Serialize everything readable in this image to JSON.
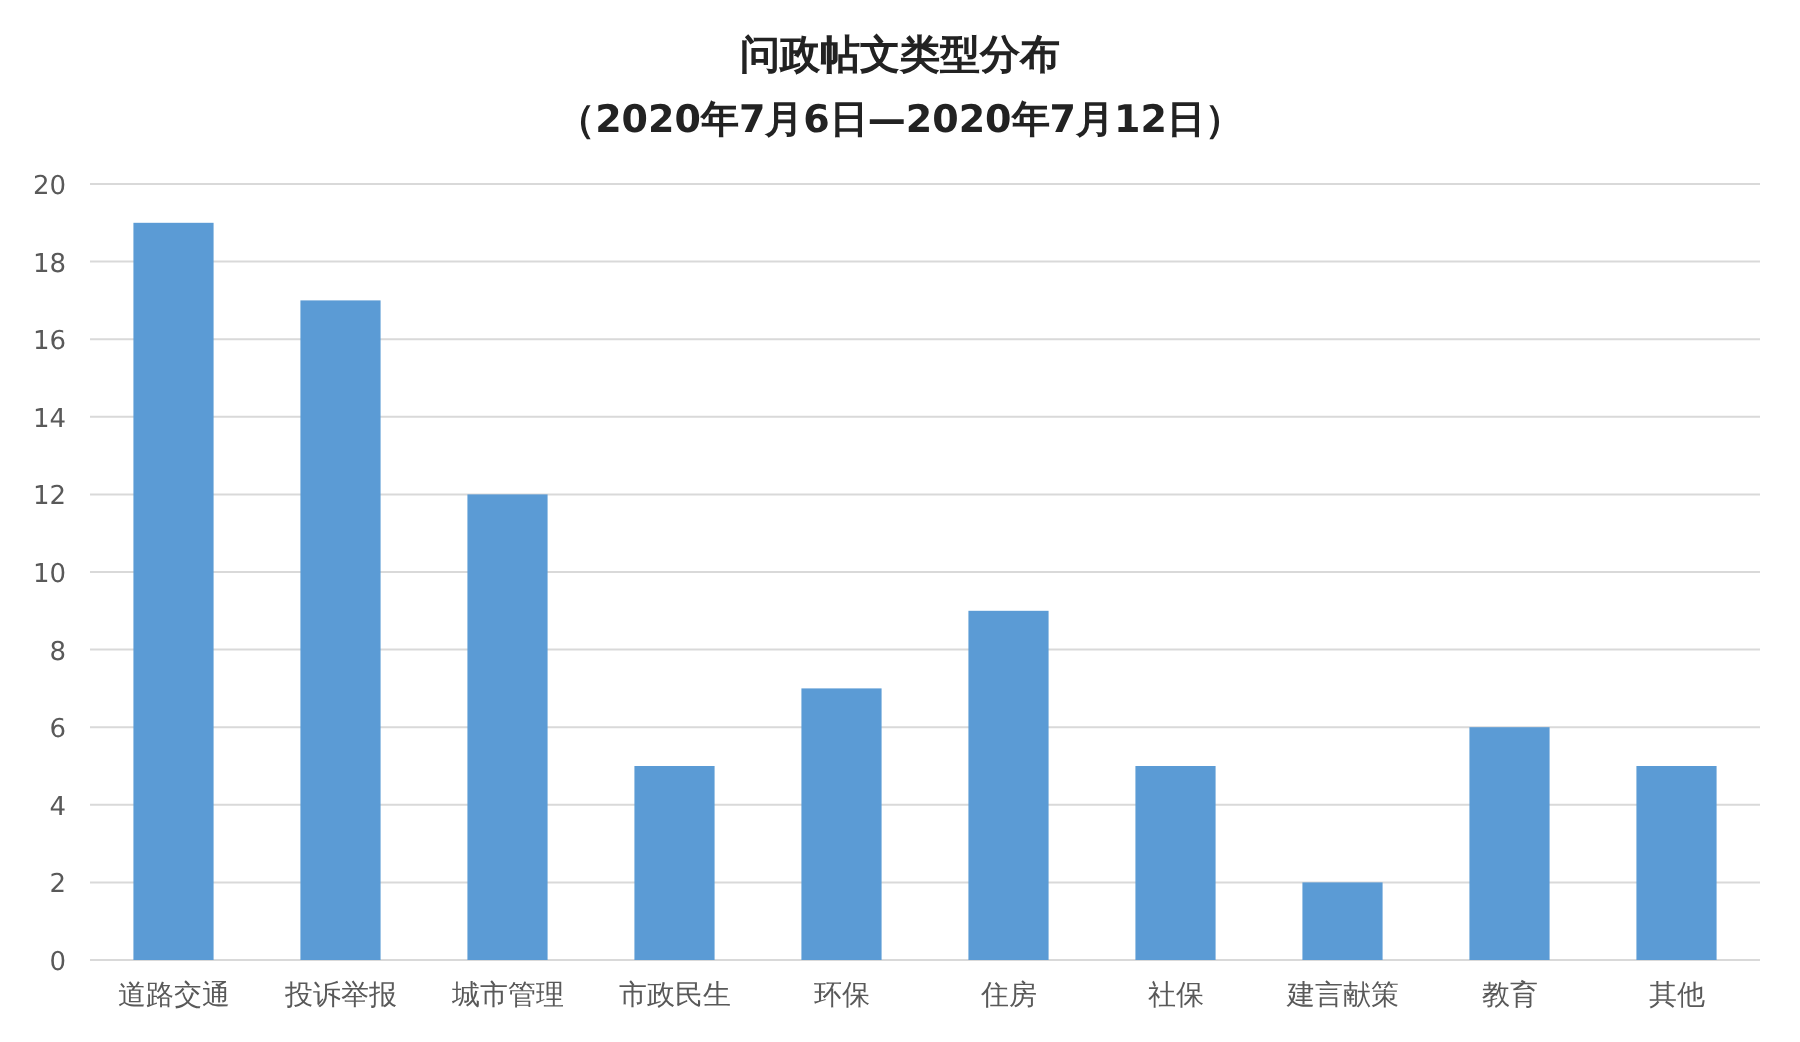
{
  "chart_data": {
    "type": "bar",
    "title": "问政帖文类型分布",
    "subtitle": "（2020年7月6日—2020年7月12日）",
    "categories": [
      "道路交通",
      "投诉举报",
      "城市管理",
      "市政民生",
      "环保",
      "住房",
      "社保",
      "建言献策",
      "教育",
      "其他"
    ],
    "values": [
      19,
      17,
      12,
      5,
      7,
      9,
      5,
      2,
      6,
      5
    ],
    "color": "#5b9bd5",
    "ylim": [
      0,
      20
    ],
    "yticks": [
      0,
      2,
      4,
      6,
      8,
      10,
      12,
      14,
      16,
      18,
      20
    ],
    "grid": "y"
  }
}
